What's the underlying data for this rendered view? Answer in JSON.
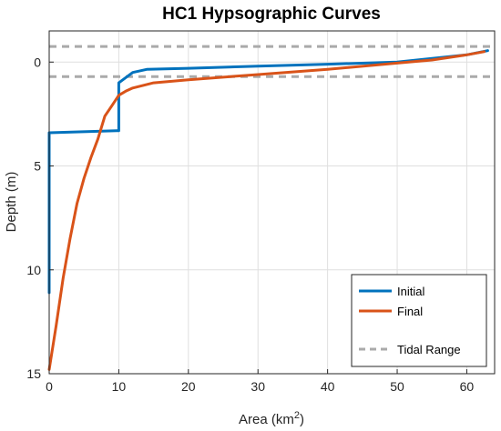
{
  "chart_data": {
    "type": "line",
    "title": "HC1 Hypsographic Curves",
    "xlabel": "Area (km",
    "xlabel_sup": "2",
    "xlabel_close": ")",
    "ylabel": "Depth (m)",
    "xlim": [
      0,
      64
    ],
    "ylim": [
      15,
      -1.5
    ],
    "y_reversed": true,
    "xticks": [
      0,
      10,
      20,
      30,
      40,
      50,
      60
    ],
    "yticks": [
      0,
      5,
      10,
      15
    ],
    "grid": true,
    "legend_position": "bottom-right",
    "series": [
      {
        "name": "Initial",
        "color": "#0072bd",
        "x": [
          0,
          0,
          10,
          10,
          12,
          14,
          20,
          30,
          40,
          50,
          60,
          63
        ],
        "y": [
          11.1,
          3.4,
          3.3,
          1.0,
          0.5,
          0.35,
          0.3,
          0.2,
          0.1,
          0.0,
          -0.35,
          -0.55
        ]
      },
      {
        "name": "Final",
        "color": "#d95319",
        "x": [
          0,
          1,
          2,
          3,
          4,
          5,
          6,
          7,
          8,
          9,
          10,
          11,
          12,
          15,
          20,
          30,
          40,
          50,
          55,
          60,
          62.5
        ],
        "y": [
          14.8,
          12.7,
          10.4,
          8.5,
          6.8,
          5.6,
          4.6,
          3.7,
          2.6,
          2.1,
          1.6,
          1.4,
          1.25,
          1.0,
          0.85,
          0.6,
          0.35,
          0.05,
          -0.1,
          -0.35,
          -0.5
        ]
      }
    ],
    "reference_lines": {
      "name": "Tidal Range",
      "color": "#aaaaaa",
      "y": [
        -0.75,
        0.7
      ]
    }
  }
}
